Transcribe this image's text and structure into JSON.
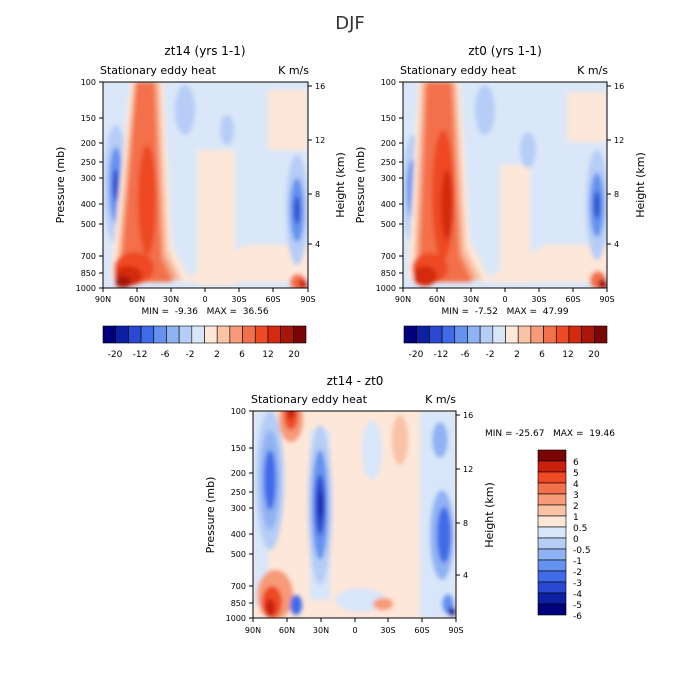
{
  "figure_title": "DJF",
  "chart_data": [
    {
      "type": "heatmap",
      "title": "zt14 (yrs 1-1)",
      "subtitle_left": "Stationary eddy heat",
      "subtitle_right": "K m/s",
      "xlabel": "",
      "ylabel": "Pressure (mb)",
      "ylabel_right": "Height (km)",
      "x_ticks": [
        "90N",
        "60N",
        "30N",
        "0",
        "30S",
        "60S",
        "90S"
      ],
      "y_ticks": [
        "100",
        "150",
        "200",
        "250",
        "300",
        "400",
        "500",
        "700",
        "850",
        "1000"
      ],
      "y_ticks_right": [
        "16",
        "12",
        "8",
        "4"
      ],
      "stat_text": "MIN =  -9.36   MAX =  36.56",
      "min": -9.36,
      "max": 36.56,
      "colorbar_labels": [
        "-20",
        "-12",
        "-6",
        "-2",
        "2",
        "6",
        "12",
        "20"
      ]
    },
    {
      "type": "heatmap",
      "title": "zt0 (yrs 1-1)",
      "subtitle_left": "Stationary eddy heat",
      "subtitle_right": "K m/s",
      "xlabel": "",
      "ylabel": "Pressure (mb)",
      "ylabel_right": "Height (km)",
      "x_ticks": [
        "90N",
        "60N",
        "30N",
        "0",
        "30S",
        "60S",
        "90S"
      ],
      "y_ticks": [
        "100",
        "150",
        "200",
        "250",
        "300",
        "400",
        "500",
        "700",
        "850",
        "1000"
      ],
      "y_ticks_right": [
        "16",
        "12",
        "8",
        "4"
      ],
      "stat_text": "MIN =  -7.52   MAX =  47.99",
      "min": -7.52,
      "max": 47.99,
      "colorbar_labels": [
        "-20",
        "-12",
        "-6",
        "-2",
        "2",
        "6",
        "12",
        "20"
      ]
    },
    {
      "type": "heatmap",
      "title": "zt14 - zt0",
      "subtitle_left": "Stationary eddy heat",
      "subtitle_right": "K m/s",
      "xlabel": "",
      "ylabel": "Pressure (mb)",
      "ylabel_right": "Height (km)",
      "x_ticks": [
        "90N",
        "60N",
        "30N",
        "0",
        "30S",
        "60S",
        "90S"
      ],
      "y_ticks": [
        "100",
        "150",
        "200",
        "250",
        "300",
        "400",
        "500",
        "700",
        "850",
        "1000"
      ],
      "y_ticks_right": [
        "16",
        "12",
        "8",
        "4"
      ],
      "stat_text": "MIN = -25.67   MAX =  19.46",
      "min": -25.67,
      "max": 19.46,
      "colorbar_labels": [
        "6",
        "5",
        "4",
        "3",
        "2",
        "1",
        "0.5",
        "0",
        "-0.5",
        "-1",
        "-2",
        "-3",
        "-4",
        "-5",
        "-6"
      ]
    }
  ],
  "colors": {
    "abs_scale": [
      "#00007d",
      "#0d1fa3",
      "#2a48d0",
      "#3f6ae8",
      "#6591ef",
      "#8fb2f3",
      "#b6cdf6",
      "#d8e6fa",
      "#fde7d9",
      "#f9c3a6",
      "#f69a78",
      "#f3704c",
      "#ee4a23",
      "#d42b10",
      "#a81509",
      "#7a0505"
    ],
    "diff_scale": [
      "#00007d",
      "#0d1fa3",
      "#2a48d0",
      "#3f6ae8",
      "#6591ef",
      "#8fb2f3",
      "#b6cdf6",
      "#d8e6fa",
      "#fde7d9",
      "#f9c3a6",
      "#f69a78",
      "#f3704c",
      "#ee4a23",
      "#c8200d",
      "#7a0505"
    ],
    "field_neutral": "#dae7f8"
  }
}
